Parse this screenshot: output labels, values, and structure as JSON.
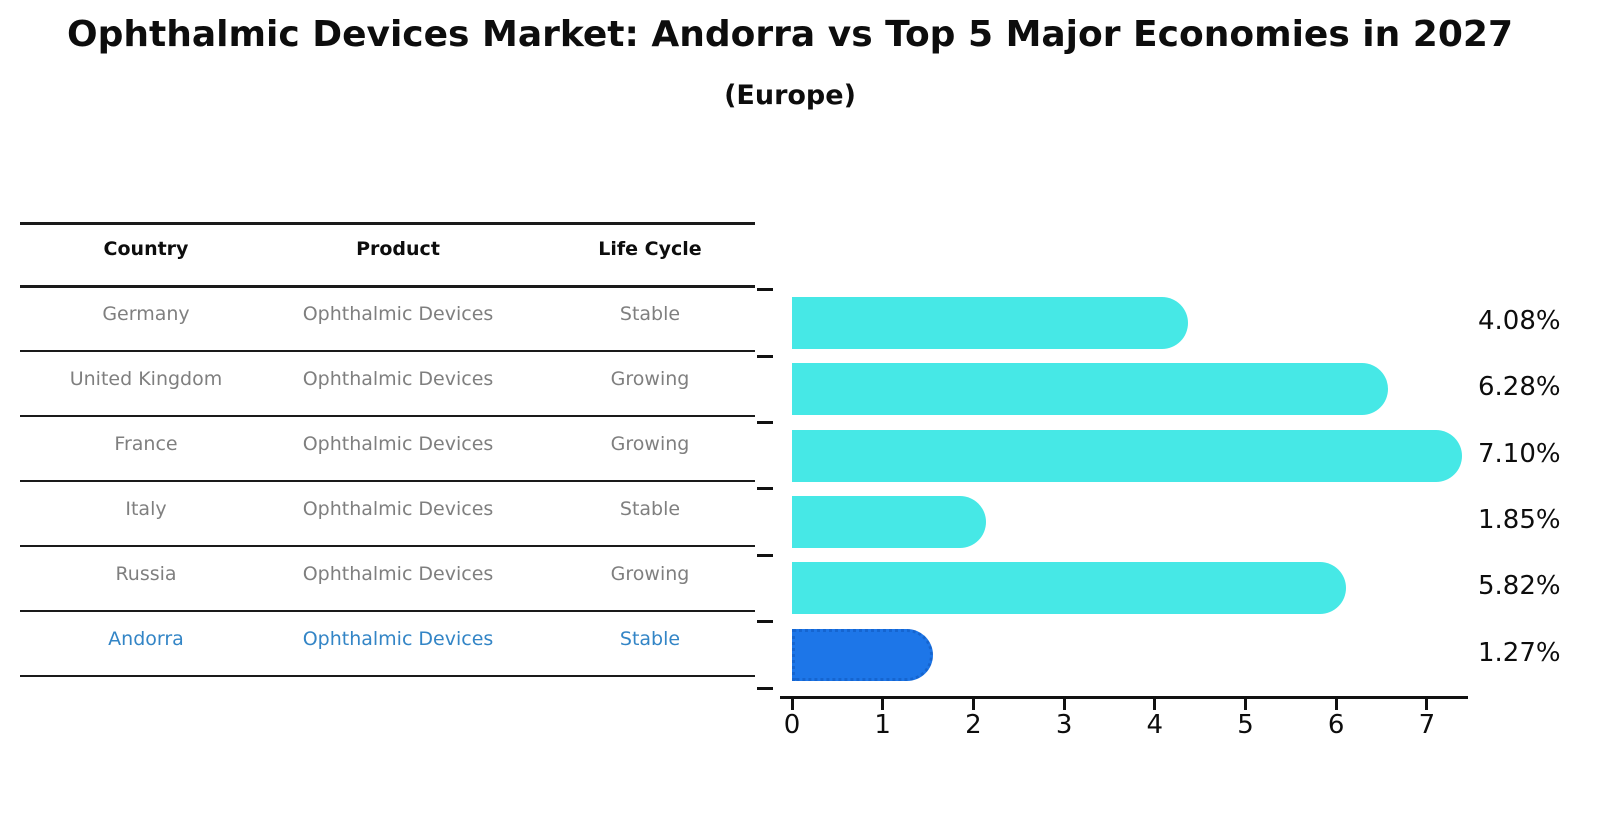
{
  "title": "Ophthalmic Devices Market: Andorra vs Top 5 Major Economies in 2027",
  "subtitle": "(Europe)",
  "table": {
    "headers": [
      "Country",
      "Product",
      "Life Cycle"
    ],
    "rows": [
      {
        "country": "Germany",
        "product": "Ophthalmic Devices",
        "life_cycle": "Stable",
        "highlight": false
      },
      {
        "country": "United Kingdom",
        "product": "Ophthalmic Devices",
        "life_cycle": "Growing",
        "highlight": false
      },
      {
        "country": "France",
        "product": "Ophthalmic Devices",
        "life_cycle": "Growing",
        "highlight": false
      },
      {
        "country": "Italy",
        "product": "Ophthalmic Devices",
        "life_cycle": "Stable",
        "highlight": false
      },
      {
        "country": "Russia",
        "product": "Ophthalmic Devices",
        "life_cycle": "Growing",
        "highlight": false
      },
      {
        "country": "Andorra",
        "product": "Ophthalmic Devices",
        "life_cycle": "Stable",
        "highlight": true
      }
    ]
  },
  "chart_data": {
    "type": "bar",
    "orientation": "horizontal",
    "categories": [
      "Germany",
      "United Kingdom",
      "France",
      "Italy",
      "Russia",
      "Andorra"
    ],
    "values": [
      4.08,
      6.28,
      7.1,
      1.85,
      5.82,
      1.27
    ],
    "labels": [
      "4.08%",
      "6.28%",
      "7.10%",
      "1.85%",
      "5.82%",
      "1.27%"
    ],
    "highlight_index": 5,
    "xticks": [
      "0",
      "1",
      "2",
      "3",
      "4",
      "5",
      "6",
      "7"
    ],
    "xlim": [
      0,
      7.5
    ],
    "grid": false,
    "legend": false,
    "value_label_position": "right-of-plot"
  },
  "colors": {
    "bar": "#46e8e6",
    "highlight_bar": "#1d76e8",
    "highlight_bar_border": "#1565d0",
    "highlight_text": "#3385c6",
    "row_text": "#7f7f7f",
    "header_text": "#0d0d0d",
    "axis": "#111111"
  }
}
